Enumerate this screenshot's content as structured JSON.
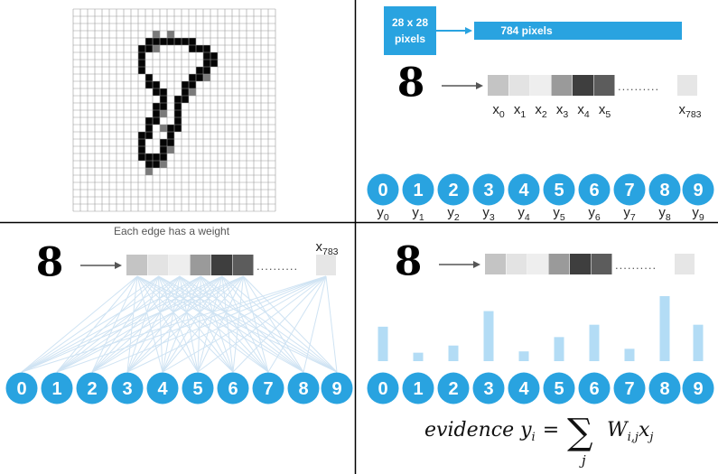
{
  "colors": {
    "accent": "#29a3e0",
    "bar": "#b3dcf5",
    "edge": "#cfe3f3",
    "divider": "#000000",
    "grid": "#9a9a9a",
    "ink": "#000000"
  },
  "panel_top_right": {
    "image_box_line1": "28 x 28",
    "image_box_line2": "pixels",
    "vector_bar_label": "784 pixels",
    "pixel_shades": [
      "#c4c4c4",
      "#e3e3e3",
      "#eeeeee",
      "#9a9a9a",
      "#3e3e3e",
      "#5c5c5c"
    ],
    "last_pixel_shade": "#e6e6e6",
    "ellipsis": "..........",
    "x_labels": [
      {
        "base": "x",
        "sub": "0"
      },
      {
        "base": "x",
        "sub": "1"
      },
      {
        "base": "x",
        "sub": "2"
      },
      {
        "base": "x",
        "sub": "3"
      },
      {
        "base": "x",
        "sub": "4"
      },
      {
        "base": "x",
        "sub": "5"
      }
    ],
    "x_last": {
      "base": "x",
      "sub": "783"
    },
    "digits": [
      "0",
      "1",
      "2",
      "3",
      "4",
      "5",
      "6",
      "7",
      "8",
      "9"
    ],
    "y_labels": [
      {
        "base": "y",
        "sub": "0"
      },
      {
        "base": "y",
        "sub": "1"
      },
      {
        "base": "y",
        "sub": "2"
      },
      {
        "base": "y",
        "sub": "3"
      },
      {
        "base": "y",
        "sub": "4"
      },
      {
        "base": "y",
        "sub": "5"
      },
      {
        "base": "y",
        "sub": "6"
      },
      {
        "base": "y",
        "sub": "7"
      },
      {
        "base": "y",
        "sub": "8"
      },
      {
        "base": "y",
        "sub": "9"
      }
    ]
  },
  "panel_bottom_left": {
    "caption": "Each edge has a weight",
    "x_last": {
      "base": "x",
      "sub": "783"
    },
    "digits": [
      "0",
      "1",
      "2",
      "3",
      "4",
      "5",
      "6",
      "7",
      "8",
      "9"
    ]
  },
  "panel_bottom_right": {
    "digits": [
      "0",
      "1",
      "2",
      "3",
      "4",
      "5",
      "6",
      "7",
      "8",
      "9"
    ],
    "evidence_levels": [
      0.53,
      0.13,
      0.24,
      0.77,
      0.15,
      0.37,
      0.56,
      0.19,
      1.0,
      0.56
    ],
    "formula_lhs": "evidence y",
    "formula_lhs_sub": "i",
    "formula_eq": "=",
    "formula_sum": "∑",
    "formula_sum_index": "j",
    "formula_w": "W",
    "formula_w_sub": "i,j",
    "formula_x": "x",
    "formula_x_sub": "j"
  },
  "digit_glyph": "8"
}
